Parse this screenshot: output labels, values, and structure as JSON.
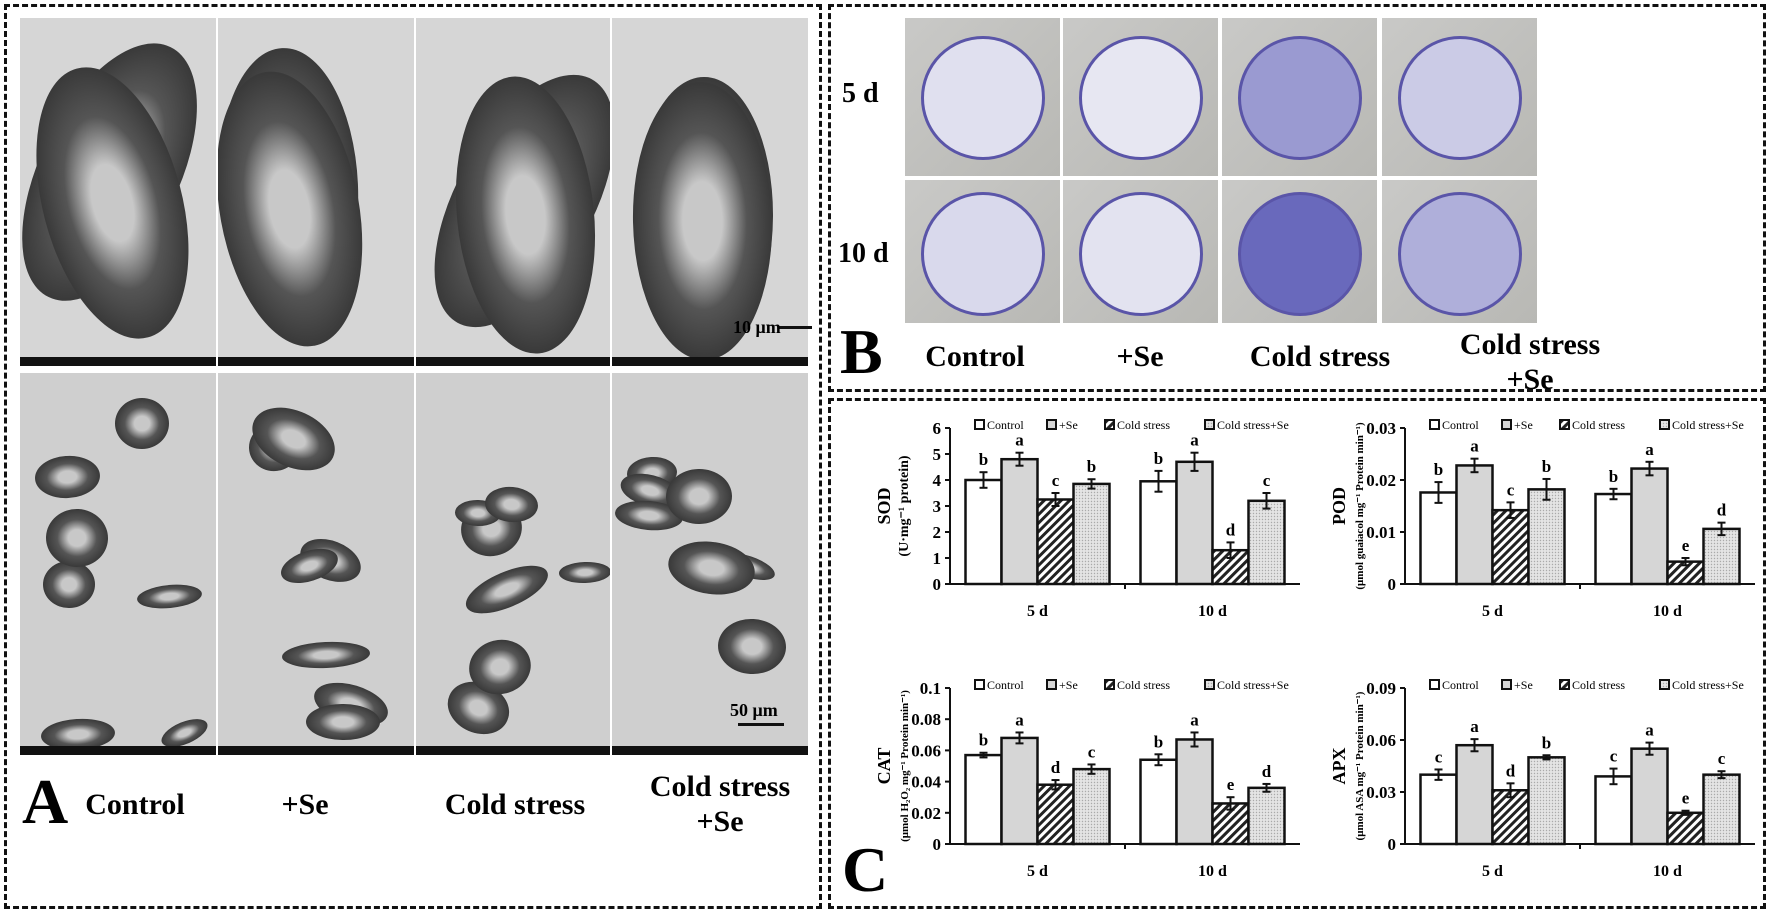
{
  "panel_a": {
    "letter": "A",
    "columns": [
      "Control",
      "+Se",
      "Cold stress",
      "Cold stress\n+Se"
    ],
    "scale_top": "10 μm",
    "scale_bottom": "50 μm"
  },
  "panel_b": {
    "letter": "B",
    "rows": [
      "5 d",
      "10 d"
    ],
    "columns": [
      "Control",
      "+Se",
      "Cold stress",
      "Cold stress\n+Se"
    ],
    "stain_intensity": [
      [
        0.1,
        0.05,
        0.6,
        0.25
      ],
      [
        0.15,
        0.08,
        0.95,
        0.45
      ]
    ]
  },
  "panel_c": {
    "letter": "C"
  },
  "chart_data": [
    {
      "type": "bar",
      "ylabel": "SOD",
      "ylabel_unit": "(U·mg⁻¹ protein)",
      "categories": [
        "5 d",
        "10 d"
      ],
      "ylim": [
        0,
        6
      ],
      "yticks": [
        "0",
        "1",
        "2",
        "3",
        "4",
        "5",
        "6"
      ],
      "legend": "top",
      "series": [
        {
          "name": "Control",
          "values": [
            4.0,
            3.95
          ],
          "errors": [
            0.3,
            0.4
          ],
          "letters": [
            "b",
            "b"
          ]
        },
        {
          "name": "+Se",
          "values": [
            4.8,
            4.7
          ],
          "errors": [
            0.25,
            0.35
          ],
          "letters": [
            "a",
            "a"
          ]
        },
        {
          "name": "Cold stress",
          "values": [
            3.25,
            1.3
          ],
          "errors": [
            0.25,
            0.3
          ],
          "letters": [
            "c",
            "d"
          ]
        },
        {
          "name": "Cold stress+Se",
          "values": [
            3.85,
            3.2
          ],
          "errors": [
            0.18,
            0.3
          ],
          "letters": [
            "b",
            "c"
          ]
        }
      ]
    },
    {
      "type": "bar",
      "ylabel": "POD",
      "ylabel_unit": "(μmol guaiacol mg⁻¹ Protein min⁻¹)",
      "categories": [
        "5 d",
        "10 d"
      ],
      "ylim": [
        0,
        0.03
      ],
      "yticks": [
        "0",
        "0.01",
        "0.02",
        "0.03"
      ],
      "legend": "top",
      "series": [
        {
          "name": "Control",
          "values": [
            0.0176,
            0.0173
          ],
          "errors": [
            0.002,
            0.001
          ],
          "letters": [
            "b",
            "b"
          ]
        },
        {
          "name": "+Se",
          "values": [
            0.0228,
            0.0222
          ],
          "errors": [
            0.0013,
            0.0013
          ],
          "letters": [
            "a",
            "a"
          ]
        },
        {
          "name": "Cold stress",
          "values": [
            0.0142,
            0.0043
          ],
          "errors": [
            0.0015,
            0.0007
          ],
          "letters": [
            "c",
            "e"
          ]
        },
        {
          "name": "Cold stress+Se",
          "values": [
            0.0182,
            0.0106
          ],
          "errors": [
            0.002,
            0.0012
          ],
          "letters": [
            "b",
            "d"
          ]
        }
      ]
    },
    {
      "type": "bar",
      "ylabel": "CAT",
      "ylabel_unit": "(μmol H₂O₂ mg⁻¹ Protein min⁻¹)",
      "categories": [
        "5 d",
        "10 d"
      ],
      "ylim": [
        0,
        0.1
      ],
      "yticks": [
        "0",
        "0.02",
        "0.04",
        "0.06",
        "0.08",
        "0.1"
      ],
      "legend": "top",
      "series": [
        {
          "name": "Control",
          "values": [
            0.057,
            0.054
          ],
          "errors": [
            0.0015,
            0.0035
          ],
          "letters": [
            "b",
            "b"
          ]
        },
        {
          "name": "+Se",
          "values": [
            0.068,
            0.067
          ],
          "errors": [
            0.0035,
            0.0045
          ],
          "letters": [
            "a",
            "a"
          ]
        },
        {
          "name": "Cold stress",
          "values": [
            0.038,
            0.026
          ],
          "errors": [
            0.003,
            0.004
          ],
          "letters": [
            "d",
            "e"
          ]
        },
        {
          "name": "Cold stress+Se",
          "values": [
            0.048,
            0.036
          ],
          "errors": [
            0.003,
            0.0025
          ],
          "letters": [
            "c",
            "d"
          ]
        }
      ]
    },
    {
      "type": "bar",
      "ylabel": "APX",
      "ylabel_unit": "(μmol ASA mg⁻¹ Protein min⁻¹)",
      "categories": [
        "5 d",
        "10 d"
      ],
      "ylim": [
        0,
        0.09
      ],
      "yticks": [
        "0",
        "0.03",
        "0.06",
        "0.09"
      ],
      "legend": "top",
      "series": [
        {
          "name": "Control",
          "values": [
            0.04,
            0.039
          ],
          "errors": [
            0.003,
            0.0045
          ],
          "letters": [
            "c",
            "c"
          ]
        },
        {
          "name": "+Se",
          "values": [
            0.057,
            0.055
          ],
          "errors": [
            0.0035,
            0.0035
          ],
          "letters": [
            "a",
            "a"
          ]
        },
        {
          "name": "Cold stress",
          "values": [
            0.031,
            0.018
          ],
          "errors": [
            0.004,
            0.0012
          ],
          "letters": [
            "d",
            "e"
          ]
        },
        {
          "name": "Cold stress+Se",
          "values": [
            0.05,
            0.04
          ],
          "errors": [
            0.0012,
            0.002
          ],
          "letters": [
            "b",
            "c"
          ]
        }
      ]
    }
  ]
}
